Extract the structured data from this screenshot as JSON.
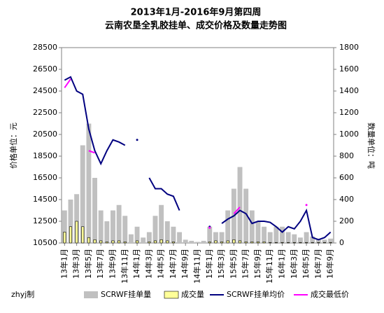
{
  "chart_data": {
    "type": "bar-line",
    "title": "2013年1月-2016年9月第四周",
    "subtitle": "云南农垦全乳胶挂单、成交价格及数量走势图",
    "y_label": "价格单位：元",
    "y2_label": "数量单位：吨",
    "credit": "zhyj制",
    "categories": [
      "13年1月",
      null,
      "13年3月",
      null,
      "13年5月",
      null,
      "13年7月",
      null,
      "13年9月",
      null,
      "13年11月",
      null,
      "14年1月",
      null,
      "14年3月",
      null,
      "14年5月",
      null,
      "14年7月",
      null,
      "14年9月",
      null,
      "14年11月",
      null,
      "15年1月",
      null,
      "15年3月",
      null,
      "15年5月",
      null,
      "15年7月",
      null,
      "15年9月",
      null,
      "15年11月",
      null,
      "16年1月",
      null,
      "16年3月",
      null,
      "16年5月",
      null,
      "16年7月",
      null,
      "16年9月"
    ],
    "ylim": [
      10500,
      28500
    ],
    "yticks": [
      10500,
      12500,
      14500,
      16500,
      18500,
      20500,
      22500,
      24500,
      26500,
      28500
    ],
    "y2lim": [
      0,
      1800
    ],
    "y2ticks": [
      0,
      200,
      400,
      600,
      800,
      1000,
      1200,
      1400,
      1600,
      1800
    ],
    "series": [
      {
        "name": "SCRWF挂单量",
        "color": "#c0c0c0",
        "kind": "bar",
        "axis": "y2",
        "values": [
          300,
          400,
          450,
          900,
          1100,
          600,
          300,
          200,
          300,
          350,
          250,
          80,
          150,
          50,
          100,
          250,
          350,
          200,
          150,
          100,
          30,
          20,
          10,
          20,
          150,
          100,
          100,
          300,
          500,
          700,
          500,
          300,
          200,
          150,
          100,
          150,
          150,
          100,
          80,
          50,
          100,
          60,
          40,
          30,
          40
        ]
      },
      {
        "name": "成交量",
        "color": "#ffff99",
        "kind": "bar",
        "axis": "y2",
        "values": [
          100,
          150,
          200,
          150,
          50,
          30,
          20,
          10,
          20,
          20,
          10,
          0,
          20,
          0,
          10,
          20,
          30,
          20,
          10,
          0,
          0,
          0,
          0,
          0,
          10,
          20,
          10,
          20,
          30,
          20,
          10,
          10,
          10,
          10,
          5,
          5,
          5,
          5,
          5,
          5,
          5,
          5,
          5,
          5,
          5
        ]
      },
      {
        "name": "SCRWF挂单均价",
        "color": "#000080",
        "kind": "line",
        "values": [
          25500,
          25800,
          24500,
          24200,
          21000,
          19000,
          17800,
          19000,
          20000,
          19800,
          19500,
          null,
          20000,
          null,
          16500,
          15500,
          15500,
          15000,
          14800,
          13500,
          null,
          null,
          null,
          null,
          12000,
          null,
          12300,
          12700,
          13000,
          13500,
          13200,
          12300,
          12500,
          12500,
          12400,
          12000,
          11500,
          12000,
          11800,
          12500,
          13500,
          11000,
          10800,
          11000,
          11500
        ]
      },
      {
        "name": "成交最低价",
        "color": "#ff00ff",
        "kind": "line",
        "values": [
          24800,
          25600,
          null,
          null,
          19000,
          18800,
          null,
          null,
          null,
          null,
          null,
          null,
          null,
          null,
          null,
          null,
          null,
          null,
          null,
          null,
          null,
          null,
          null,
          null,
          11900,
          null,
          null,
          null,
          13200,
          13800,
          null,
          null,
          null,
          null,
          null,
          null,
          null,
          null,
          null,
          null,
          14000,
          null,
          null,
          null,
          null
        ]
      }
    ]
  }
}
